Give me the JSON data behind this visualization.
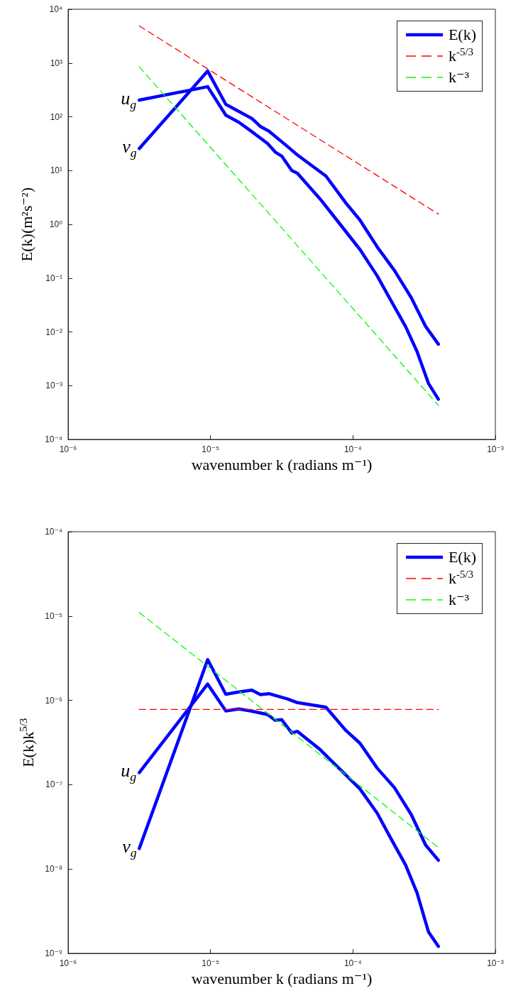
{
  "chart_data": [
    {
      "type": "line",
      "xlabel": "wavenumber k (radians m⁻¹)",
      "ylabel": "E(k)(m²s⁻²)",
      "log": "xy",
      "legend": "top right",
      "xlim": [
        1e-06,
        0.001
      ],
      "xticks": [
        {
          "value": 1e-06,
          "label": "10⁻⁶"
        },
        {
          "value": 1e-05,
          "label": "10⁻⁵"
        },
        {
          "value": 0.0001,
          "label": "10⁻⁴"
        },
        {
          "value": 0.001,
          "label": "10⁻³"
        }
      ],
      "ylim": [
        0.0001,
        10000.0
      ],
      "yticks": [
        {
          "value": 0.0001,
          "label": "10⁻⁴"
        },
        {
          "value": 0.001,
          "label": "10⁻³"
        },
        {
          "value": 0.01,
          "label": "10⁻²"
        },
        {
          "value": 0.1,
          "label": "10⁻¹"
        },
        {
          "value": 1,
          "label": "10⁰"
        },
        {
          "value": 10,
          "label": "10¹"
        },
        {
          "value": 100,
          "label": "10²"
        },
        {
          "value": 1000,
          "label": "10³"
        },
        {
          "value": 10000,
          "label": "10⁴"
        }
      ],
      "series": [
        {
          "color": "#0000ff",
          "line_style": "solid",
          "x": [
            3.16e-06,
            9.55e-06,
            1.28e-05,
            1.58e-05,
            1.91e-05,
            2.51e-05,
            2.85e-05,
            3.16e-05,
            3.72e-05,
            4.07e-05,
            5.89e-05,
            8.13e-05,
            0.000112,
            0.000148,
            0.000186,
            0.000234,
            0.000282,
            0.000339,
            0.000398
          ],
          "values": [
            204,
            363,
            107,
            79,
            55,
            32,
            22,
            18.6,
            10,
            8.9,
            2.95,
            1.0,
            0.34,
            0.11,
            0.037,
            0.0126,
            0.0043,
            0.0011,
            0.00056
          ]
        },
        {
          "name": "E(k)",
          "color": "#0000ff",
          "line_style": "solid",
          "x": [
            3.16e-06,
            9.55e-06,
            1.28e-05,
            1.58e-05,
            1.95e-05,
            2.24e-05,
            2.57e-05,
            3.47e-05,
            4.07e-05,
            6.46e-05,
            8.91e-05,
            0.000112,
            0.000148,
            0.000195,
            0.000257,
            0.000324,
            0.000398
          ],
          "values": [
            25.7,
            708,
            170,
            126,
            93,
            66,
            54,
            28,
            19.5,
            7.9,
            2.5,
            1.2,
            0.38,
            0.14,
            0.043,
            0.0126,
            0.0059
          ]
        },
        {
          "name": "k$^{-5/3}$",
          "color": "#ff0000",
          "line_style": "dashed",
          "x": [
            3.16e-06,
            0.000398
          ],
          "values": [
            4900,
            1.55
          ]
        },
        {
          "name": "k⁻³",
          "color": "#00ff00",
          "line_style": "dashed",
          "x": [
            3.16e-06,
            0.000398
          ],
          "values": [
            850,
            0.00043
          ]
        }
      ],
      "annotations": [
        "u$_{g}$",
        "v$_{g}$"
      ]
    },
    {
      "type": "line",
      "xlabel": "wavenumber k (radians m⁻¹)",
      "ylabel": "E(k)k$^{5/3}$",
      "log": "xy",
      "legend": "top right",
      "xlim": [
        1e-06,
        0.001
      ],
      "xticks": [
        {
          "value": 1e-06,
          "label": "10⁻⁶"
        },
        {
          "value": 1e-05,
          "label": "10⁻⁵"
        },
        {
          "value": 0.0001,
          "label": "10⁻⁴"
        },
        {
          "value": 0.001,
          "label": "10⁻³"
        }
      ],
      "ylim": [
        1e-09,
        0.0001
      ],
      "yticks": [
        {
          "value": 1e-09,
          "label": "10⁻⁹"
        },
        {
          "value": 1e-08,
          "label": "10⁻⁸"
        },
        {
          "value": 1e-07,
          "label": "10⁻⁷"
        },
        {
          "value": 1e-06,
          "label": "10⁻⁶"
        },
        {
          "value": 1e-05,
          "label": "10⁻⁵"
        },
        {
          "value": 0.0001,
          "label": "10⁻⁴"
        }
      ],
      "series": [
        {
          "color": "#0000ff",
          "line_style": "solid",
          "x": [
            3.16e-06,
            9.55e-06,
            1.28e-05,
            1.58e-05,
            1.91e-05,
            2.51e-05,
            2.85e-05,
            3.16e-05,
            3.72e-05,
            4.07e-05,
            5.89e-05,
            8.13e-05,
            0.000112,
            0.000148,
            0.000186,
            0.000234,
            0.000282,
            0.000339,
            0.000398
          ],
          "values": [
            1.39e-07,
            1.56e-06,
            7.5e-07,
            7.9e-07,
            7.5e-07,
            6.8e-07,
            5.8e-07,
            5.9e-07,
            4.1e-07,
            4.3e-07,
            2.6e-07,
            1.52e-07,
            8.9e-08,
            4.6e-08,
            2.25e-08,
            1.12e-08,
            5.2e-09,
            1.8e-09,
            1.21e-09
          ]
        },
        {
          "name": "E(k)",
          "color": "#0000ff",
          "line_style": "solid",
          "x": [
            3.16e-06,
            9.55e-06,
            1.28e-05,
            1.58e-05,
            1.95e-05,
            2.24e-05,
            2.57e-05,
            3.47e-05,
            4.07e-05,
            6.46e-05,
            8.91e-05,
            0.000112,
            0.000148,
            0.000195,
            0.000257,
            0.000324,
            0.000398
          ],
          "values": [
            1.75e-08,
            3.04e-06,
            1.18e-06,
            1.26e-06,
            1.32e-06,
            1.17e-06,
            1.2e-06,
            1.04e-06,
            9.4e-07,
            8.3e-07,
            4.4e-07,
            3.1e-07,
            1.57e-07,
            9.3e-08,
            4.4e-08,
            1.92e-08,
            1.27e-08
          ]
        },
        {
          "name": "k$^{-5/3}$",
          "color": "#ff0000",
          "line_style": "dashed",
          "x": [
            3.16e-06,
            0.000398
          ],
          "values": [
            7.8e-07,
            7.8e-07
          ]
        },
        {
          "name": "k⁻³",
          "color": "#00ff00",
          "line_style": "dashed",
          "x": [
            3.16e-06,
            0.000398
          ],
          "values": [
            1.1e-05,
            1.8e-08
          ]
        }
      ],
      "annotations": [
        "u$_{g}$",
        "v$_{g}$"
      ]
    }
  ]
}
